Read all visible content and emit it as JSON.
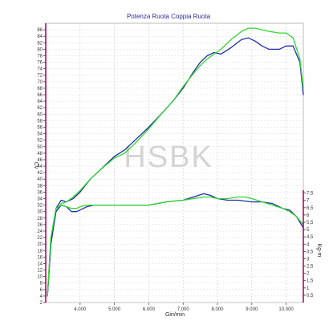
{
  "chart_data": {
    "type": "line",
    "title": "Potenza Ruota Coppia Ruota",
    "watermark": "HSBK",
    "xlabel": "Giri/min",
    "ylabel_left": "Cv",
    "ylabel_right": "Kg-m",
    "x_axis": {
      "range": [
        3000,
        10500
      ],
      "ticks": [
        4000,
        5000,
        6000,
        7000,
        8000,
        9000,
        10000
      ],
      "tick_labels": [
        "4.000",
        "5.000",
        "6.000",
        "7.000",
        "8.000",
        "9.000",
        "10.000"
      ]
    },
    "y_left_axis": {
      "range": [
        2,
        88
      ],
      "ticks": [
        2,
        4,
        6,
        8,
        10,
        12,
        14,
        16,
        18,
        20,
        22,
        24,
        26,
        28,
        30,
        32,
        34,
        36,
        38,
        40,
        42,
        44,
        46,
        48,
        50,
        52,
        54,
        56,
        58,
        60,
        62,
        64,
        66,
        68,
        70,
        72,
        74,
        76,
        78,
        80,
        82,
        84,
        86
      ],
      "tick_labels": [
        "2",
        "4",
        "6",
        "8",
        "10",
        "12",
        "14",
        "16",
        "18",
        "20",
        "22",
        "24",
        "26",
        "28",
        "30",
        "32",
        "34",
        "36",
        "38",
        "40",
        "42",
        "44",
        "46",
        "48",
        "50",
        "52",
        "54",
        "56",
        "58",
        "60",
        "62",
        "64",
        "66",
        "68",
        "70",
        "72",
        "74",
        "76",
        "78",
        "80",
        "82",
        "84",
        "86"
      ]
    },
    "y_right_axis": {
      "range": [
        0,
        7.7
      ],
      "ticks": [
        0.5,
        1,
        1.5,
        2,
        2.5,
        3,
        3.5,
        4,
        4.5,
        5,
        5.5,
        6,
        6.5,
        7,
        7.5
      ],
      "tick_labels": [
        "0,5",
        "1",
        "1,5",
        "2",
        "2,5",
        "3",
        "3,5",
        "4",
        "4,5",
        "5",
        "5,5",
        "6",
        "6,5",
        "7",
        "7,5"
      ]
    },
    "grid": true,
    "series": [
      {
        "axis": "left",
        "color": "#1f2fa8",
        "x": [
          3050,
          3150,
          3300,
          3450,
          3600,
          3800,
          4000,
          4300,
          4600,
          5000,
          5300,
          5600,
          6000,
          6400,
          6700,
          7000,
          7300,
          7500,
          7700,
          7900,
          8100,
          8400,
          8700,
          8900,
          9100,
          9300,
          9500,
          9800,
          10000,
          10200,
          10400,
          10500
        ],
        "y": [
          4,
          20,
          31,
          33.5,
          33,
          34,
          36,
          40,
          43,
          47,
          49,
          52,
          56,
          60.5,
          64,
          68,
          73,
          76,
          78,
          79,
          78.5,
          80.5,
          83,
          83.5,
          82.5,
          81,
          80,
          80,
          81,
          81,
          76,
          66
        ]
      },
      {
        "axis": "left",
        "color": "#2fd82f",
        "x": [
          3050,
          3150,
          3300,
          3450,
          3600,
          3800,
          4000,
          4300,
          4600,
          5000,
          5300,
          5600,
          6000,
          6400,
          6700,
          7000,
          7300,
          7500,
          7700,
          7900,
          8100,
          8400,
          8700,
          8900,
          9100,
          9300,
          9500,
          9800,
          10000,
          10200,
          10400,
          10500
        ],
        "y": [
          4,
          22,
          30,
          32.5,
          33,
          34.5,
          36.5,
          40,
          43,
          46.5,
          48,
          51,
          55.5,
          60.5,
          64,
          68.5,
          72.5,
          75,
          77,
          78.5,
          80,
          83,
          85.5,
          86.5,
          86.5,
          86,
          85.5,
          85,
          85,
          83.5,
          77,
          68
        ]
      },
      {
        "axis": "left",
        "color": "#1f2fa8",
        "x": [
          3050,
          3150,
          3300,
          3450,
          3600,
          3750,
          3900,
          4000,
          4200,
          4400,
          4600,
          5000,
          5500,
          6000,
          6500,
          7000,
          7300,
          7600,
          7800,
          8000,
          8300,
          8600,
          9000,
          9300,
          9600,
          9900,
          10100,
          10300,
          10500
        ],
        "y": [
          4,
          20,
          30,
          32,
          31.5,
          30,
          30,
          30.5,
          31.5,
          32,
          32,
          32,
          32,
          32,
          33,
          33.5,
          34.5,
          35.5,
          35,
          34,
          33.5,
          33.5,
          33,
          33,
          32.5,
          31,
          30.5,
          28.5,
          25
        ]
      },
      {
        "axis": "left",
        "color": "#2fd82f",
        "x": [
          3050,
          3150,
          3300,
          3450,
          3600,
          3750,
          3900,
          4000,
          4200,
          4400,
          4600,
          5000,
          5500,
          6000,
          6500,
          7000,
          7300,
          7600,
          7800,
          8000,
          8300,
          8600,
          8800,
          9000,
          9300,
          9600,
          9900,
          10100,
          10300,
          10500
        ],
        "y": [
          4,
          22,
          31,
          32,
          31.5,
          31,
          31,
          31.5,
          32,
          32,
          32,
          32,
          32,
          32,
          33,
          33.5,
          34,
          34.5,
          34.5,
          34,
          34,
          34.5,
          34.5,
          34,
          33,
          32,
          31,
          30,
          28.5,
          26
        ]
      }
    ]
  }
}
